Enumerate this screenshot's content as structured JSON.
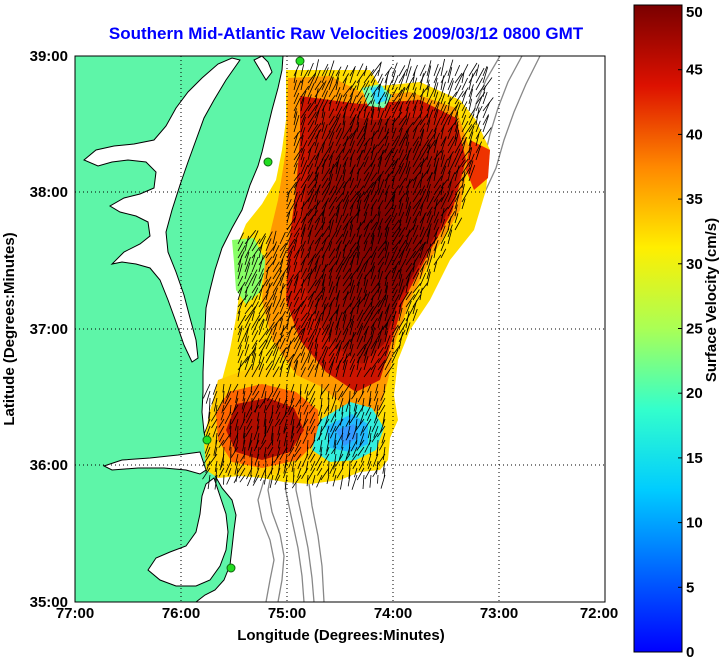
{
  "title": "Southern Mid-Atlantic Raw Velocities 2009/03/12 0800 GMT",
  "x_axis": {
    "label": "Longitude (Degrees:Minutes)",
    "ticks": [
      "77:00",
      "76:00",
      "75:00",
      "74:00",
      "73:00",
      "72:00"
    ],
    "range": [
      -77,
      -72
    ]
  },
  "y_axis": {
    "label": "Latitude (Degrees:Minutes)",
    "ticks": [
      "35:00",
      "36:00",
      "37:00",
      "38:00",
      "39:00"
    ],
    "range": [
      35,
      39
    ]
  },
  "colorbar": {
    "label": "Surface Velocity (cm/s)",
    "ticks": [
      "0",
      "5",
      "10",
      "15",
      "20",
      "25",
      "30",
      "35",
      "40",
      "45",
      "50"
    ],
    "range": [
      0,
      50
    ]
  },
  "colors": {
    "land": "#5ef5a8",
    "coast": "#000000",
    "bathymetry": "#888888",
    "site_marker": "#22dd22",
    "title": "#0000ff"
  },
  "grid": true,
  "map_bounds": {
    "lon": [
      -77,
      -72
    ],
    "lat": [
      35,
      39
    ]
  }
}
